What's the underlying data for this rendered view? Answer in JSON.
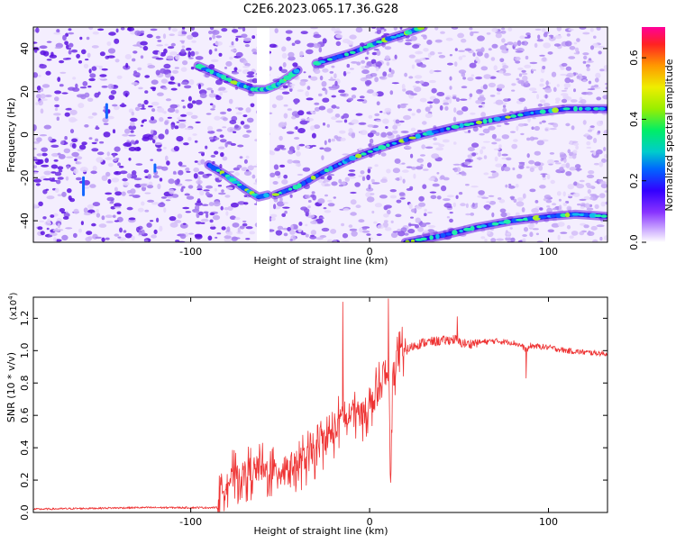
{
  "title": "C2E6.2023.065.17.36.G28",
  "chart_data": [
    {
      "type": "heatmap",
      "xlabel": "Height of straight line (km)",
      "ylabel": "Frequency (Hz)",
      "xlim": [
        -188,
        133
      ],
      "ylim": [
        -50,
        50
      ],
      "xticks": [
        -100,
        0,
        100
      ],
      "yticks": [
        -40,
        -20,
        0,
        20,
        40
      ],
      "colorbar": {
        "label": "Normalized spectral amplitude",
        "range": [
          0,
          0.7
        ],
        "ticks": [
          0.0,
          0.2,
          0.4,
          0.6
        ]
      },
      "tracks": [
        {
          "x": [
            -90,
            -80,
            -70,
            -62,
            -57
          ],
          "y": [
            -14,
            -19,
            -25,
            -29,
            -28
          ]
        },
        {
          "x": [
            -96,
            -85,
            -75,
            -65,
            -58,
            -52,
            -45,
            -40
          ],
          "y": [
            32,
            28,
            24,
            21,
            21,
            23,
            27,
            30
          ]
        },
        {
          "x": [
            -53,
            -40,
            -25,
            -10,
            10,
            30,
            50,
            70,
            90,
            110,
            133
          ],
          "y": [
            -28,
            -24,
            -17,
            -11,
            -5,
            0,
            4,
            7,
            10,
            12,
            12
          ]
        },
        {
          "x": [
            -30,
            -10,
            5,
            20,
            30
          ],
          "y": [
            33,
            38,
            43,
            47,
            50
          ]
        },
        {
          "x": [
            20,
            40,
            60,
            80,
            100,
            115,
            133
          ],
          "y": [
            -50,
            -47,
            -43,
            -40,
            -38,
            -37,
            -38
          ]
        }
      ]
    },
    {
      "type": "line",
      "xlabel": "Height of straight line (km)",
      "ylabel": "SNR (10 * v/v)",
      "yscale_note": "(x10",
      "yscale_exp": "4",
      "yscale_close": ")",
      "xlim": [
        -188,
        133
      ],
      "ylim": [
        0,
        1.33
      ],
      "xticks": [
        -100,
        0,
        100
      ],
      "yticks": [
        0.0,
        0.2,
        0.4,
        0.6,
        0.8,
        1.0,
        1.2
      ],
      "series": [
        {
          "color": "#ee3333",
          "x": [
            -188,
            -160,
            -130,
            -100,
            -85,
            -83,
            -80,
            -75,
            -70,
            -65,
            -60,
            -55,
            -50,
            -45,
            -40,
            -35,
            -30,
            -25,
            -20,
            -15,
            -12,
            -10,
            -5,
            0,
            5,
            8,
            10,
            11,
            12,
            13,
            15,
            20,
            25,
            30,
            40,
            48,
            50,
            55,
            60,
            70,
            80,
            85,
            88,
            90,
            100,
            110,
            120,
            133
          ],
          "y": [
            0.02,
            0.025,
            0.03,
            0.03,
            0.03,
            0.12,
            0.2,
            0.22,
            0.24,
            0.25,
            0.26,
            0.25,
            0.27,
            0.29,
            0.3,
            0.33,
            0.38,
            0.45,
            0.5,
            0.6,
            0.55,
            0.63,
            0.6,
            0.65,
            0.75,
            0.8,
            0.85,
            0.7,
            0.25,
            0.8,
            0.95,
            1.0,
            1.03,
            1.05,
            1.06,
            1.07,
            1.05,
            1.04,
            1.05,
            1.06,
            1.05,
            1.03,
            1.0,
            1.03,
            1.02,
            1.0,
            0.99,
            0.98
          ]
        }
      ],
      "spikes": [
        {
          "x": -15,
          "y": 1.3
        },
        {
          "x": 10.5,
          "y": 1.32
        },
        {
          "x": 49,
          "y": 1.21
        },
        {
          "x": 87.5,
          "y": 0.83
        },
        {
          "x": 11.5,
          "y": 0.24
        }
      ]
    }
  ]
}
